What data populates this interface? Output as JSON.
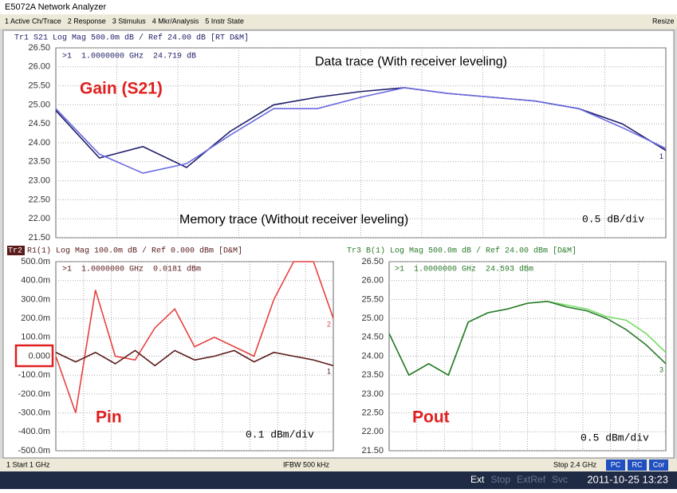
{
  "window": {
    "title": "E5072A Network Analyzer",
    "menu": [
      "1 Active Ch/Trace",
      "2 Response",
      "3 Stimulus",
      "4 Mkr/Analysis",
      "5 Instr State"
    ],
    "resize": "Resize"
  },
  "chart_data": [
    {
      "type": "line",
      "header": "Tr1 S21 Log Mag 500.0m dB / Ref 24.00 dB [RT D&M]",
      "marker_readout": ">1  1.0000000 GHz  24.719 dB",
      "title": "Gain (S21)",
      "scale_label": "0.5 dB/div",
      "annotations": [
        "Data trace (With receiver leveling)",
        "Memory trace (Without receiver leveling)"
      ],
      "xlim": [
        1,
        2.4
      ],
      "x": [
        1,
        1.1,
        1.2,
        1.3,
        1.4,
        1.5,
        1.6,
        1.7,
        1.8,
        1.9,
        2.0,
        2.1,
        2.2,
        2.3,
        2.4
      ],
      "ylim": [
        21.5,
        26.5
      ],
      "yticks": [
        {
          "value": 26.5,
          "label": "26.50"
        },
        {
          "value": 26,
          "label": "26.00"
        },
        {
          "value": 25.5,
          "label": "25.50"
        },
        {
          "value": 25,
          "label": "25.00"
        },
        {
          "value": 24.5,
          "label": "24.50"
        },
        {
          "value": 24,
          "label": "24.00"
        },
        {
          "value": 23.5,
          "label": "23.50"
        },
        {
          "value": 23,
          "label": "23.00"
        },
        {
          "value": 22.5,
          "label": "22.50"
        },
        {
          "value": 22,
          "label": "22.00"
        },
        {
          "value": 21.5,
          "label": "21.50"
        }
      ],
      "grid": true,
      "series": [
        {
          "color": "#1e1e6a",
          "end_label": "1",
          "values": [
            24.85,
            23.6,
            23.9,
            23.35,
            24.3,
            25.0,
            25.2,
            25.35,
            25.45,
            25.3,
            25.2,
            25.1,
            24.9,
            24.5,
            23.8
          ]
        },
        {
          "color": "#6a6ae0",
          "values": [
            24.9,
            23.7,
            23.2,
            23.45,
            24.2,
            24.9,
            24.9,
            25.2,
            25.45,
            25.3,
            25.2,
            25.1,
            24.9,
            24.4,
            23.85
          ]
        }
      ]
    },
    {
      "type": "line",
      "trace_id": "Tr2",
      "header": "R1(1) Log Mag 100.0m dB / Ref 0.000 dBm [D&M]",
      "marker_readout": ">1  1.0000000 GHz  0.0181 dBm",
      "title": "Pin",
      "scale_label": "0.1 dBm/div",
      "xlim": [
        1,
        2.4
      ],
      "x": [
        1,
        1.1,
        1.2,
        1.3,
        1.4,
        1.5,
        1.6,
        1.7,
        1.8,
        1.9,
        2.0,
        2.1,
        2.2,
        2.3,
        2.4
      ],
      "ylim": [
        -0.5,
        0.5
      ],
      "yticks": [
        {
          "value": 0.5,
          "label": "500.0m"
        },
        {
          "value": 0.4,
          "label": "400.0m"
        },
        {
          "value": 0.3,
          "label": "300.0m"
        },
        {
          "value": 0.2,
          "label": "200.0m"
        },
        {
          "value": 0.1,
          "label": "100.0m"
        },
        {
          "value": 0,
          "label": "0.000"
        },
        {
          "value": -0.1,
          "label": "-100.0m"
        },
        {
          "value": -0.2,
          "label": "-200.0m"
        },
        {
          "value": -0.3,
          "label": "-300.0m"
        },
        {
          "value": -0.4,
          "label": "-400.0m"
        },
        {
          "value": -0.5,
          "label": "-500.0m"
        }
      ],
      "grid": true,
      "series": [
        {
          "color": "#e84040",
          "end_label": "2",
          "values": [
            0.0,
            -0.3,
            0.35,
            0.0,
            -0.02,
            0.15,
            0.25,
            0.05,
            0.1,
            0.05,
            0.0,
            0.3,
            0.5,
            0.5,
            0.2
          ]
        },
        {
          "color": "#5a1a1a",
          "end_label": "1",
          "values": [
            0.02,
            -0.03,
            0.02,
            -0.04,
            0.03,
            -0.05,
            0.03,
            -0.02,
            0.0,
            0.03,
            -0.03,
            0.02,
            0.0,
            -0.02,
            -0.05
          ]
        }
      ]
    },
    {
      "type": "line",
      "header": "Tr3 B(1) Log Mag 500.0m dB / Ref 24.00 dBm [D&M]",
      "marker_readout": ">1  1.0000000 GHz  24.593 dBm",
      "title": "Pout",
      "scale_label": "0.5 dBm/div",
      "xlim": [
        1,
        2.4
      ],
      "x": [
        1,
        1.1,
        1.2,
        1.3,
        1.4,
        1.5,
        1.6,
        1.7,
        1.8,
        1.9,
        2.0,
        2.1,
        2.2,
        2.3,
        2.4
      ],
      "ylim": [
        21.5,
        26.5
      ],
      "yticks": [
        {
          "value": 26.5,
          "label": "26.50"
        },
        {
          "value": 26,
          "label": "26.00"
        },
        {
          "value": 25.5,
          "label": "25.50"
        },
        {
          "value": 25,
          "label": "25.00"
        },
        {
          "value": 24.5,
          "label": "24.50"
        },
        {
          "value": 24,
          "label": "24.00"
        },
        {
          "value": 23.5,
          "label": "23.50"
        },
        {
          "value": 23,
          "label": "23.00"
        },
        {
          "value": 22.5,
          "label": "22.50"
        },
        {
          "value": 22,
          "label": "22.00"
        },
        {
          "value": 21.5,
          "label": "21.50"
        }
      ],
      "grid": true,
      "series": [
        {
          "color": "#77dd66",
          "values": [
            24.6,
            23.5,
            23.8,
            23.5,
            24.9,
            25.15,
            25.25,
            25.4,
            25.45,
            25.35,
            25.25,
            25.05,
            24.95,
            24.6,
            24.1
          ]
        },
        {
          "color": "#2a7a2a",
          "end_label": "3",
          "values": [
            24.6,
            23.5,
            23.8,
            23.5,
            24.9,
            25.15,
            25.25,
            25.4,
            25.45,
            25.3,
            25.2,
            25.0,
            24.7,
            24.3,
            23.8
          ]
        }
      ]
    }
  ],
  "status_bar": {
    "start": "1 Start 1 GHz",
    "ifbw": "IFBW 500 kHz",
    "stop": "Stop 2.4 GHz",
    "buttons": [
      "PC",
      "RC",
      "Cor"
    ]
  },
  "taskbar": {
    "items": [
      "Ext",
      "Stop",
      "ExtRef",
      "Svc"
    ],
    "datetime": "2011-10-25 13:23"
  }
}
